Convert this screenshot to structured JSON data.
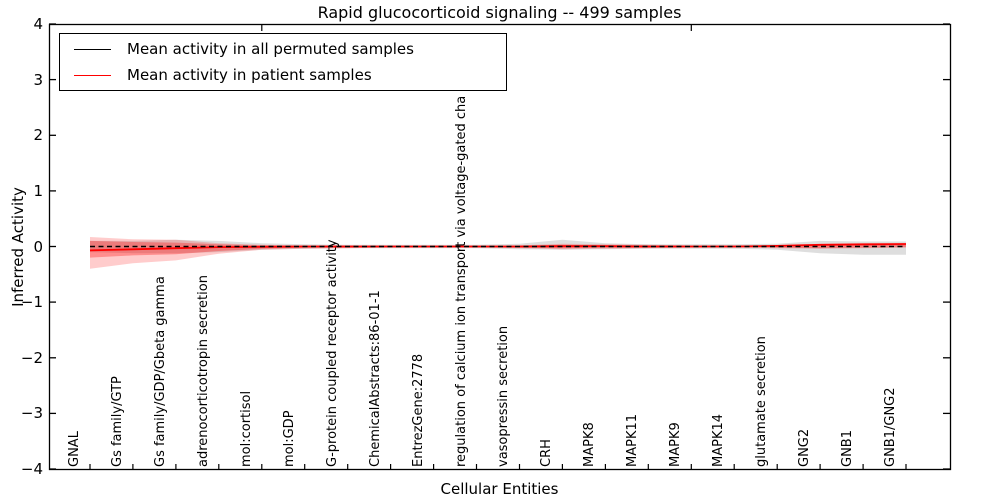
{
  "title": "Rapid glucocorticoid signaling -- 499 samples",
  "legend": {
    "items": [
      {
        "label": "Mean activity in all permuted samples",
        "color": "#000000"
      },
      {
        "label": "Mean activity in patient samples",
        "color": "#ff0000"
      }
    ]
  },
  "chart_data": {
    "type": "line",
    "title": "Rapid glucocorticoid signaling -- 499 samples",
    "xlabel": "Cellular Entities",
    "ylabel": "Inferred Activity",
    "ylim": [
      -4,
      4
    ],
    "ytick_labels": [
      "4",
      "3",
      "2",
      "1",
      "0",
      "−1",
      "−2",
      "−3",
      "−4"
    ],
    "ytick_values": [
      4,
      3,
      2,
      1,
      0,
      -1,
      -2,
      -3,
      -4
    ],
    "grid": false,
    "legend_position": "upper left",
    "categories": [
      "GNAL",
      "Gs family/GTP",
      "Gs family/GDP/Gbeta gamma",
      "adrenocorticotropin secretion",
      "mol:cortisol",
      "mol:GDP",
      "G-protein coupled receptor activity",
      "ChemicalAbstracts:86-01-1",
      "EntrezGene:2778",
      "regulation of calcium ion transport via voltage-gated cha",
      "vasopressin secretion",
      "CRH",
      "MAPK8",
      "MAPK11",
      "MAPK9",
      "MAPK14",
      "glutamate secretion",
      "GNG2",
      "GNB1",
      "GNB1/GNG2"
    ],
    "series": [
      {
        "name": "Mean activity in all permuted samples",
        "color": "#000000",
        "style": "dashed",
        "values": [
          0,
          0,
          0,
          0,
          0,
          0,
          0,
          0,
          0,
          0,
          0,
          0,
          0,
          0,
          0,
          0,
          0,
          0,
          0,
          0
        ]
      },
      {
        "name": "Mean activity in patient samples",
        "color": "#ff0000",
        "style": "solid",
        "values": [
          -0.07,
          -0.05,
          -0.03,
          -0.01,
          -0.005,
          0,
          0,
          0,
          0,
          0,
          0,
          0.005,
          0.005,
          0,
          0,
          0,
          0.01,
          0.03,
          0.04,
          0.045
        ]
      }
    ],
    "bands": [
      {
        "name": "permuted-range",
        "color": "#000000",
        "opacity": 0.13,
        "upper": [
          0.1,
          0.1,
          0.12,
          0.1,
          0.06,
          0.04,
          0.03,
          0.03,
          0.03,
          0.03,
          0.05,
          0.12,
          0.06,
          0.04,
          0.04,
          0.04,
          0.05,
          0.1,
          0.09,
          0.09
        ],
        "lower": [
          -0.1,
          -0.12,
          -0.12,
          -0.1,
          -0.06,
          -0.04,
          -0.03,
          -0.03,
          -0.03,
          -0.03,
          -0.05,
          -0.06,
          -0.05,
          -0.04,
          -0.04,
          -0.04,
          -0.06,
          -0.12,
          -0.15,
          -0.15
        ]
      },
      {
        "name": "patient-range-outer",
        "color": "#ff0000",
        "opacity": 0.2,
        "upper": [
          0.17,
          0.13,
          0.12,
          0.06,
          0.03,
          0.02,
          0.02,
          0.01,
          0.01,
          0.01,
          0.02,
          0.05,
          0.04,
          0.03,
          0.02,
          0.02,
          0.02,
          0.03,
          0.04,
          0.05
        ],
        "lower": [
          -0.4,
          -0.3,
          -0.25,
          -0.13,
          -0.06,
          -0.04,
          -0.03,
          -0.02,
          -0.02,
          -0.02,
          -0.03,
          -0.05,
          -0.04,
          -0.03,
          -0.02,
          -0.02,
          -0.03,
          -0.04,
          -0.03,
          -0.02
        ]
      },
      {
        "name": "patient-range-inner",
        "color": "#ff0000",
        "opacity": 0.3,
        "upper": [
          0.1,
          0.08,
          0.07,
          0.04,
          0.02,
          0.01,
          0.01,
          0.01,
          0.01,
          0.01,
          0.01,
          0.03,
          0.02,
          0.02,
          0.01,
          0.01,
          0.01,
          0.02,
          0.03,
          0.04
        ],
        "lower": [
          -0.2,
          -0.16,
          -0.14,
          -0.08,
          -0.04,
          -0.02,
          -0.02,
          -0.01,
          -0.01,
          -0.01,
          -0.02,
          -0.03,
          -0.02,
          -0.02,
          -0.01,
          -0.01,
          -0.02,
          -0.03,
          -0.02,
          -0.01
        ]
      }
    ],
    "top_tick_indices": [
      4,
      14
    ]
  }
}
